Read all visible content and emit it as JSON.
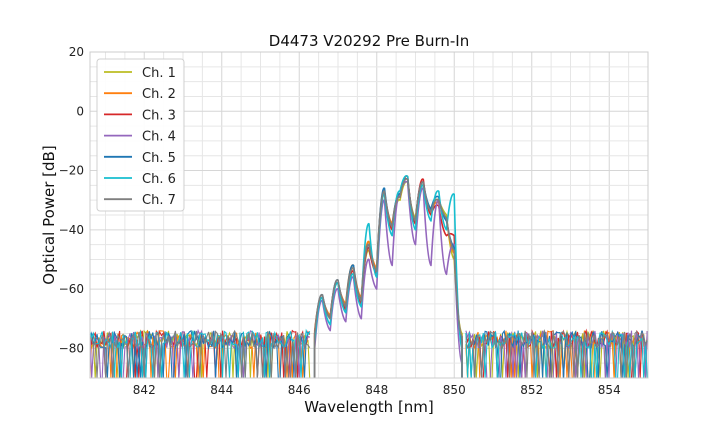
{
  "chart_data": {
    "type": "line",
    "title": "D4473 V20292 Pre Burn-In",
    "xlabel": "Wavelength [nm]",
    "ylabel": "Optical Power [dB]",
    "xlim": [
      840.6,
      855.0
    ],
    "ylim": [
      -90,
      20
    ],
    "xticks": [
      842,
      844,
      846,
      848,
      850,
      852,
      854
    ],
    "yticks": [
      20,
      0,
      -20,
      -40,
      -60,
      -80
    ],
    "grid": true,
    "legend_position": "top-left",
    "series": [
      {
        "name": "Ch. 1",
        "color": "#bcbd22",
        "x": [
          846.4,
          846.6,
          846.8,
          847.0,
          847.2,
          847.4,
          847.6,
          847.8,
          848.0,
          848.2,
          848.4,
          848.6,
          848.8,
          849.0,
          849.2,
          849.4,
          849.6,
          849.8,
          850.0,
          850.2
        ],
        "y": [
          -75,
          -63,
          -70,
          -58,
          -66,
          -53,
          -64,
          -47,
          -54,
          -28,
          -40,
          -30,
          -24,
          -36,
          -25,
          -33,
          -30,
          -35,
          -50,
          -75
        ]
      },
      {
        "name": "Ch. 2",
        "color": "#ff7f0e",
        "x": [
          846.4,
          846.6,
          846.8,
          847.0,
          847.2,
          847.4,
          847.6,
          847.8,
          848.0,
          848.2,
          848.4,
          848.6,
          848.8,
          849.0,
          849.2,
          849.4,
          849.6,
          849.8,
          850.0,
          850.2
        ],
        "y": [
          -74,
          -63,
          -69,
          -58,
          -65,
          -52,
          -63,
          -44,
          -53,
          -27,
          -38,
          -29,
          -23,
          -37,
          -24,
          -34,
          -31,
          -36,
          -48,
          -76
        ]
      },
      {
        "name": "Ch. 3",
        "color": "#d62728",
        "x": [
          846.4,
          846.6,
          846.8,
          847.0,
          847.2,
          847.4,
          847.6,
          847.8,
          848.0,
          848.2,
          848.4,
          848.6,
          848.8,
          849.0,
          849.2,
          849.4,
          849.6,
          849.8,
          850.0,
          850.2
        ],
        "y": [
          -75,
          -63,
          -70,
          -58,
          -67,
          -54,
          -65,
          -46,
          -55,
          -27,
          -40,
          -29,
          -22,
          -38,
          -23,
          -35,
          -32,
          -42,
          -42,
          -78
        ]
      },
      {
        "name": "Ch. 4",
        "color": "#9467bd",
        "x": [
          846.4,
          846.6,
          846.8,
          847.0,
          847.2,
          847.4,
          847.6,
          847.8,
          848.0,
          848.2,
          848.4,
          848.6,
          848.8,
          849.0,
          849.2,
          849.4,
          849.6,
          849.8,
          850.0,
          850.2
        ],
        "y": [
          -80,
          -64,
          -74,
          -60,
          -71,
          -56,
          -70,
          -50,
          -60,
          -30,
          -52,
          -28,
          -24,
          -45,
          -26,
          -52,
          -30,
          -55,
          -45,
          -85
        ]
      },
      {
        "name": "Ch. 5",
        "color": "#1f77b4",
        "x": [
          846.4,
          846.6,
          846.8,
          847.0,
          847.2,
          847.4,
          847.6,
          847.8,
          848.0,
          848.2,
          848.4,
          848.6,
          848.8,
          849.0,
          849.2,
          849.4,
          849.6,
          849.8,
          850.0,
          850.2
        ],
        "y": [
          -76,
          -62,
          -70,
          -57,
          -66,
          -52,
          -64,
          -45,
          -54,
          -26,
          -39,
          -28,
          -23,
          -37,
          -24,
          -33,
          -29,
          -37,
          -46,
          -77
        ]
      },
      {
        "name": "Ch. 6",
        "color": "#17becf",
        "x": [
          846.4,
          846.6,
          846.8,
          847.0,
          847.2,
          847.4,
          847.6,
          847.8,
          848.0,
          848.2,
          848.4,
          848.6,
          848.8,
          849.0,
          849.2,
          849.4,
          849.6,
          849.8,
          850.0,
          850.2
        ],
        "y": [
          -78,
          -63,
          -72,
          -58,
          -68,
          -55,
          -66,
          -38,
          -56,
          -28,
          -42,
          -27,
          -22,
          -40,
          -25,
          -37,
          -27,
          -40,
          -28,
          -80
        ]
      },
      {
        "name": "Ch. 7",
        "color": "#7f7f7f",
        "x": [
          846.4,
          846.6,
          846.8,
          847.0,
          847.2,
          847.4,
          847.6,
          847.8,
          848.0,
          848.2,
          848.4,
          848.6,
          848.8,
          849.0,
          849.2,
          849.4,
          849.6,
          849.8,
          850.0,
          850.2
        ],
        "y": [
          -75,
          -62,
          -70,
          -57,
          -66,
          -53,
          -64,
          -45,
          -54,
          -27,
          -39,
          -29,
          -23,
          -37,
          -24,
          -34,
          -30,
          -36,
          -47,
          -76
        ]
      }
    ],
    "noise_floor": {
      "x_ranges": [
        [
          840.6,
          846.3
        ],
        [
          850.3,
          855.0
        ]
      ],
      "y_range": [
        -90,
        -72
      ]
    }
  }
}
